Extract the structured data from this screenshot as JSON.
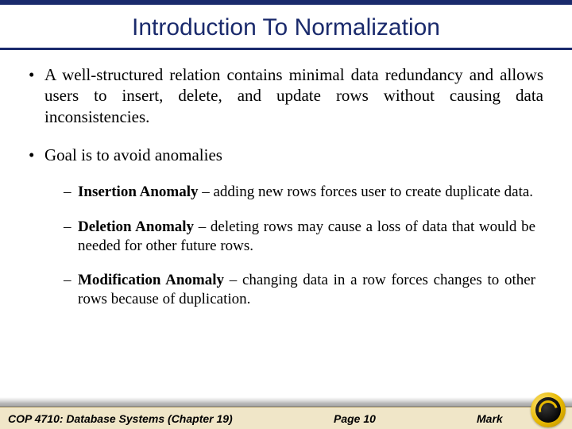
{
  "colors": {
    "title": "#1a2a6c",
    "topbar": "#1a2a6c",
    "footer_bg": "#f0e6c8",
    "text": "#000000",
    "logo_gold": "#e6b800"
  },
  "typography": {
    "title_font": "Arial",
    "title_size_pt": 30,
    "body_font": "Times New Roman",
    "body_size_pt": 21,
    "sub_size_pt": 19,
    "footer_font": "Arial",
    "footer_size_pt": 14
  },
  "title": "Introduction To Normalization",
  "bullets": {
    "b1": "A well-structured relation contains minimal data redundancy and allows users to insert, delete, and update rows without causing data inconsistencies.",
    "b2": "Goal is to avoid anomalies"
  },
  "sub": {
    "s1": {
      "label": "Insertion Anomaly",
      "text": " – adding new rows forces user to create duplicate data."
    },
    "s2": {
      "label": "Deletion Anomaly",
      "text": " – deleting rows may cause a loss of data that would be needed for other future rows."
    },
    "s3": {
      "label": "Modification Anomaly",
      "text": " – changing data in a row forces changes to other rows because of duplication."
    }
  },
  "footer": {
    "course": "COP 4710: Database Systems  (Chapter 19)",
    "page": "Page 10",
    "author": "Mark"
  }
}
